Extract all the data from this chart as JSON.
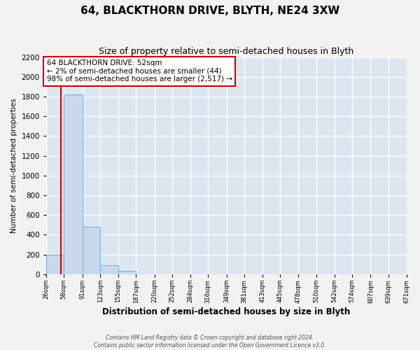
{
  "title": "64, BLACKTHORN DRIVE, BLYTH, NE24 3XW",
  "subtitle": "Size of property relative to semi-detached houses in Blyth",
  "xlabel": "Distribution of semi-detached houses by size in Blyth",
  "ylabel": "Number of semi-detached properties",
  "bin_edges": [
    26,
    58,
    91,
    123,
    155,
    187,
    220,
    252,
    284,
    316,
    349,
    381,
    413,
    445,
    478,
    510,
    542,
    574,
    607,
    639,
    671
  ],
  "bar_heights": [
    195,
    1820,
    480,
    90,
    35,
    0,
    0,
    0,
    0,
    0,
    0,
    0,
    0,
    0,
    0,
    0,
    0,
    0,
    0,
    0
  ],
  "bar_color": "#c8d8ed",
  "bar_edge_color": "#7aadd4",
  "property_size": 52,
  "property_line_color": "#cc0000",
  "ylim_max": 2200,
  "yticks": [
    0,
    200,
    400,
    600,
    800,
    1000,
    1200,
    1400,
    1600,
    1800,
    2000,
    2200
  ],
  "ann_line1": "64 BLACKTHORN DRIVE: 52sqm",
  "ann_line2": "← 2% of semi-detached houses are smaller (44)",
  "ann_line3": "98% of semi-detached houses are larger (2,517) →",
  "ann_box_facecolor": "#ffffff",
  "ann_box_edgecolor": "#cc0000",
  "plot_bg_color": "#dde6f0",
  "fig_bg_color": "#f2f2f2",
  "grid_color": "#ffffff",
  "footer1": "Contains HM Land Registry data © Crown copyright and database right 2024.",
  "footer2": "Contains public sector information licensed under the Open Government Licence v3.0."
}
